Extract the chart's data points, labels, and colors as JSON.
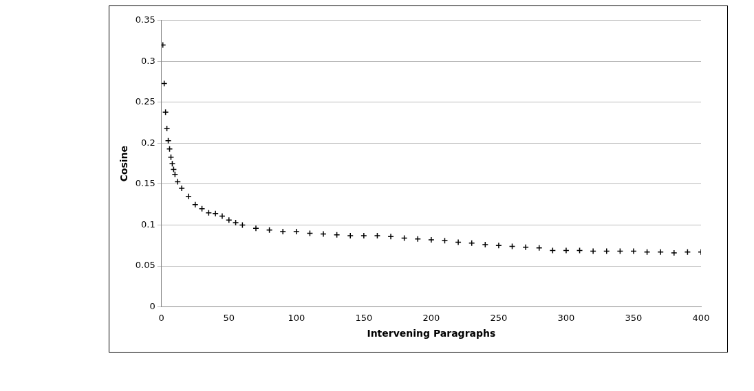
{
  "chart_data": {
    "type": "scatter",
    "xlabel": "Intervening Paragraphs",
    "ylabel": "Cosine",
    "x": [
      1,
      2,
      3,
      4,
      5,
      6,
      7,
      8,
      9,
      10,
      12,
      15,
      20,
      25,
      30,
      35,
      40,
      45,
      50,
      55,
      60,
      70,
      80,
      90,
      100,
      110,
      120,
      130,
      140,
      150,
      160,
      170,
      180,
      190,
      200,
      210,
      220,
      230,
      240,
      250,
      260,
      270,
      280,
      290,
      300,
      310,
      320,
      330,
      340,
      350,
      360,
      370,
      380,
      390,
      400
    ],
    "series": [
      {
        "color": "#000000",
        "values": [
          0.32,
          0.273,
          0.238,
          0.218,
          0.203,
          0.193,
          0.183,
          0.175,
          0.168,
          0.162,
          0.153,
          0.145,
          0.135,
          0.125,
          0.12,
          0.115,
          0.114,
          0.111,
          0.106,
          0.103,
          0.1,
          0.096,
          0.094,
          0.092,
          0.092,
          0.09,
          0.089,
          0.088,
          0.087,
          0.087,
          0.087,
          0.086,
          0.084,
          0.083,
          0.082,
          0.081,
          0.079,
          0.078,
          0.076,
          0.075,
          0.074,
          0.073,
          0.072,
          0.069,
          0.069,
          0.069,
          0.068,
          0.068,
          0.068,
          0.068,
          0.067,
          0.067,
          0.066,
          0.067,
          0.067
        ]
      }
    ],
    "xlim": [
      0,
      400
    ],
    "xticks": [
      0,
      50,
      100,
      150,
      200,
      250,
      300,
      350,
      400
    ],
    "ylim": [
      0,
      0.35
    ],
    "yticks": [
      0,
      0.05,
      0.1,
      0.15,
      0.2,
      0.25,
      0.3,
      0.35
    ],
    "grid": "y",
    "legend": false,
    "marker": "cross"
  }
}
